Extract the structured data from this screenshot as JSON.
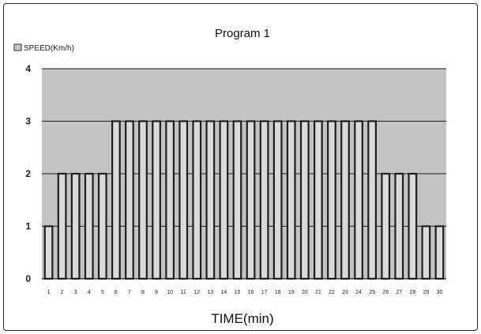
{
  "chart_data": {
    "type": "bar",
    "title": "Program 1",
    "xlabel": "TIME(min)",
    "ylabel": "",
    "ylim": [
      0,
      4
    ],
    "yticks": [
      "0",
      "1",
      "2",
      "3",
      "4"
    ],
    "grid": "horizontal",
    "legend_position": "top-left",
    "categories": [
      "1",
      "2",
      "3",
      "4",
      "5",
      "6",
      "7",
      "8",
      "9",
      "10",
      "11",
      "12",
      "13",
      "14",
      "15",
      "16",
      "17",
      "18",
      "19",
      "20",
      "21",
      "22",
      "23",
      "24",
      "25",
      "26",
      "27",
      "28",
      "29",
      "30"
    ],
    "series": [
      {
        "name": "SPEED(Km/h)",
        "values": [
          1,
          2,
          2,
          2,
          2,
          3,
          3,
          3,
          3,
          3,
          3,
          3,
          3,
          3,
          3,
          3,
          3,
          3,
          3,
          3,
          3,
          3,
          3,
          3,
          3,
          2,
          2,
          2,
          1,
          1
        ]
      }
    ],
    "colors": {
      "plot_background": "#c4c4c4",
      "bar_fill": "#dadada",
      "bar_stroke": "#1e1e1e",
      "gridline": "#1a1a1a"
    }
  }
}
